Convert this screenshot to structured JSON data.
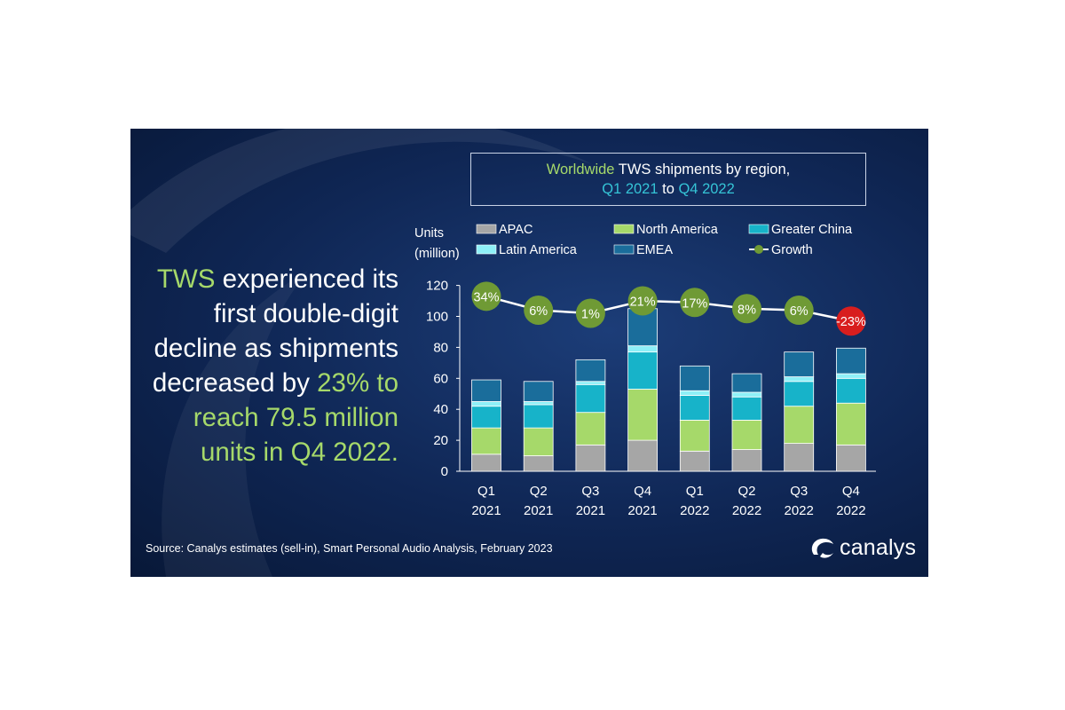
{
  "headline": {
    "part1": "TWS",
    "part2": " experienced its first double-digit decline as shipments decreased by ",
    "part3": "23%",
    "part4": " to reach 79.5 million units in Q4 2022."
  },
  "title": {
    "word1": "Worldwide",
    "word2": " TWS shipments by region,",
    "word3": "Q1 2021",
    "word4": " to ",
    "word5": "Q4 2022"
  },
  "source": "Source:  Canalys estimates (sell-in), Smart Personal Audio Analysis, February 2023",
  "logo_text": "canalys",
  "chart_data": {
    "type": "bar",
    "stacked": true,
    "ylabel_line1": "Units",
    "ylabel_line2": "(million)",
    "ylim": [
      0,
      120
    ],
    "yticks": [
      0,
      20,
      40,
      60,
      80,
      100,
      120
    ],
    "categories": [
      {
        "q": "Q1",
        "y": "2021"
      },
      {
        "q": "Q2",
        "y": "2021"
      },
      {
        "q": "Q3",
        "y": "2021"
      },
      {
        "q": "Q4",
        "y": "2021"
      },
      {
        "q": "Q1",
        "y": "2022"
      },
      {
        "q": "Q2",
        "y": "2022"
      },
      {
        "q": "Q3",
        "y": "2022"
      },
      {
        "q": "Q4",
        "y": "2022"
      }
    ],
    "series": [
      {
        "name": "APAC",
        "color": "#a6a6a6",
        "values": [
          11,
          10,
          17,
          20,
          13,
          14,
          18,
          17
        ]
      },
      {
        "name": "North America",
        "color": "#a6d96a",
        "values": [
          17,
          18,
          21,
          33,
          20,
          19,
          24,
          27
        ]
      },
      {
        "name": "Greater China",
        "color": "#17b3c9",
        "values": [
          14,
          15,
          18,
          24,
          16,
          15,
          16,
          16
        ]
      },
      {
        "name": "Latin America",
        "color": "#8ef0f7",
        "values": [
          3,
          2,
          2,
          4,
          3,
          3,
          3,
          3
        ]
      },
      {
        "name": "EMEA",
        "color": "#1a6d9b",
        "values": [
          14,
          13,
          14,
          24,
          16,
          12,
          16,
          16.5
        ]
      }
    ],
    "growth": {
      "name": "Growth",
      "values": [
        34,
        6,
        1,
        21,
        17,
        8,
        6,
        -23
      ],
      "labels": [
        "34%",
        "6%",
        "1%",
        "21%",
        "17%",
        "8%",
        "6%",
        "-23%"
      ],
      "line_y": [
        113,
        104,
        102,
        110,
        109,
        105,
        104,
        97
      ],
      "positive_color": "#6f9a35",
      "negative_color": "#d81e1e"
    },
    "legend_position": "top"
  }
}
